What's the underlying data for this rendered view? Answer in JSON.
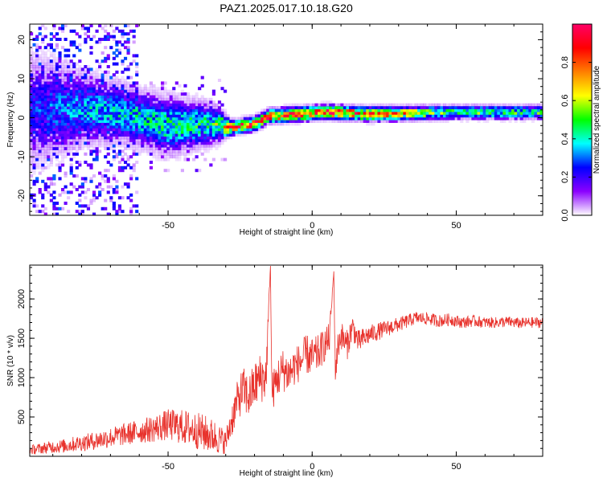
{
  "figure_title": "PAZ1.2025.017.10.18.G20",
  "chart_data": [
    {
      "type": "heatmap",
      "title": "PAZ1.2025.017.10.18.G20",
      "xlabel": "Height of straight line (km)",
      "ylabel": "Frequency (Hz)",
      "xlim": [
        -98,
        80
      ],
      "ylim": [
        -25,
        24
      ],
      "x_ticks": [
        -50,
        0,
        50
      ],
      "y_ticks": [
        -20,
        -10,
        0,
        10,
        20
      ],
      "colorbar": {
        "label": "Normalized spectral amplitude",
        "range": [
          0,
          1
        ],
        "ticks": [
          0.0,
          0.2,
          0.4,
          0.6,
          0.8
        ],
        "tick_labels": [
          "0.0",
          "0.2",
          "0.4",
          "0.6",
          "0.8"
        ],
        "colormap": [
          "#ffffff",
          "#8b00ff",
          "#0000ff",
          "#00ffff",
          "#00ff00",
          "#ffff00",
          "#ff7f00",
          "#ff0000",
          "#ff0066"
        ]
      },
      "ridge": [
        {
          "x": -98,
          "center": 2.0,
          "spread": 8,
          "amp": 0.25
        },
        {
          "x": -80,
          "center": 2.5,
          "spread": 5,
          "amp": 0.35
        },
        {
          "x": -65,
          "center": 1.0,
          "spread": 4,
          "amp": 0.4
        },
        {
          "x": -50,
          "center": -2.0,
          "spread": 4,
          "amp": 0.45
        },
        {
          "x": -35,
          "center": -1.5,
          "spread": 3,
          "amp": 0.45
        },
        {
          "x": -28,
          "center": -2.5,
          "spread": 1,
          "amp": 0.85
        },
        {
          "x": -20,
          "center": -1.5,
          "spread": 1,
          "amp": 0.9
        },
        {
          "x": -15,
          "center": 0.5,
          "spread": 1,
          "amp": 0.9
        },
        {
          "x": -5,
          "center": 1.0,
          "spread": 1,
          "amp": 0.9
        },
        {
          "x": 5,
          "center": 1.5,
          "spread": 1,
          "amp": 0.95
        },
        {
          "x": 20,
          "center": 1.0,
          "spread": 1,
          "amp": 0.85
        },
        {
          "x": 50,
          "center": 1.5,
          "spread": 1,
          "amp": 0.5
        },
        {
          "x": 80,
          "center": 1.5,
          "spread": 1,
          "amp": 0.5
        }
      ]
    },
    {
      "type": "line",
      "xlabel": "Height of straight line (km)",
      "ylabel": "SNR (10 * v/v)",
      "xlim": [
        -98,
        80
      ],
      "ylim": [
        0,
        2430
      ],
      "x_ticks": [
        -50,
        0,
        50
      ],
      "y_ticks": [
        500,
        1000,
        1500,
        2000
      ],
      "color": "#e8322c",
      "series": [
        {
          "x": [
            -98,
            -94,
            -90,
            -86,
            -82,
            -78,
            -74,
            -70,
            -66,
            -62,
            -58,
            -54,
            -50,
            -46,
            -42,
            -38,
            -34,
            -30,
            -28,
            -26,
            -24,
            -22,
            -20,
            -18,
            -16,
            -14.5,
            -14,
            -12,
            -10,
            -8,
            -6,
            -4,
            -2,
            0,
            2,
            4,
            6,
            7.5,
            8,
            9,
            10,
            12,
            14,
            16,
            18,
            20,
            24,
            28,
            32,
            36,
            40,
            44,
            48,
            52,
            56,
            60,
            64,
            68,
            72,
            76,
            80
          ],
          "values": [
            80,
            100,
            120,
            130,
            160,
            180,
            210,
            240,
            270,
            300,
            330,
            360,
            400,
            380,
            350,
            300,
            250,
            180,
            450,
            700,
            850,
            750,
            900,
            1000,
            1000,
            2420,
            800,
            1000,
            1100,
            1050,
            1150,
            1200,
            1300,
            1250,
            1300,
            1400,
            1500,
            2350,
            1100,
            1400,
            1550,
            1400,
            1650,
            1450,
            1500,
            1550,
            1600,
            1650,
            1700,
            1760,
            1750,
            1720,
            1740,
            1700,
            1720,
            1700,
            1700,
            1710,
            1690,
            1700,
            1700
          ],
          "noise": [
            60,
            70,
            80,
            90,
            100,
            110,
            120,
            130,
            140,
            150,
            160,
            180,
            200,
            220,
            230,
            240,
            220,
            150,
            220,
            250,
            300,
            280,
            300,
            320,
            320,
            0,
            250,
            260,
            280,
            260,
            250,
            240,
            260,
            250,
            240,
            220,
            200,
            0,
            250,
            200,
            180,
            200,
            160,
            150,
            140,
            120,
            110,
            100,
            90,
            80,
            80,
            80,
            80,
            75,
            75,
            70,
            70,
            70,
            70,
            70,
            70
          ]
        }
      ]
    }
  ]
}
